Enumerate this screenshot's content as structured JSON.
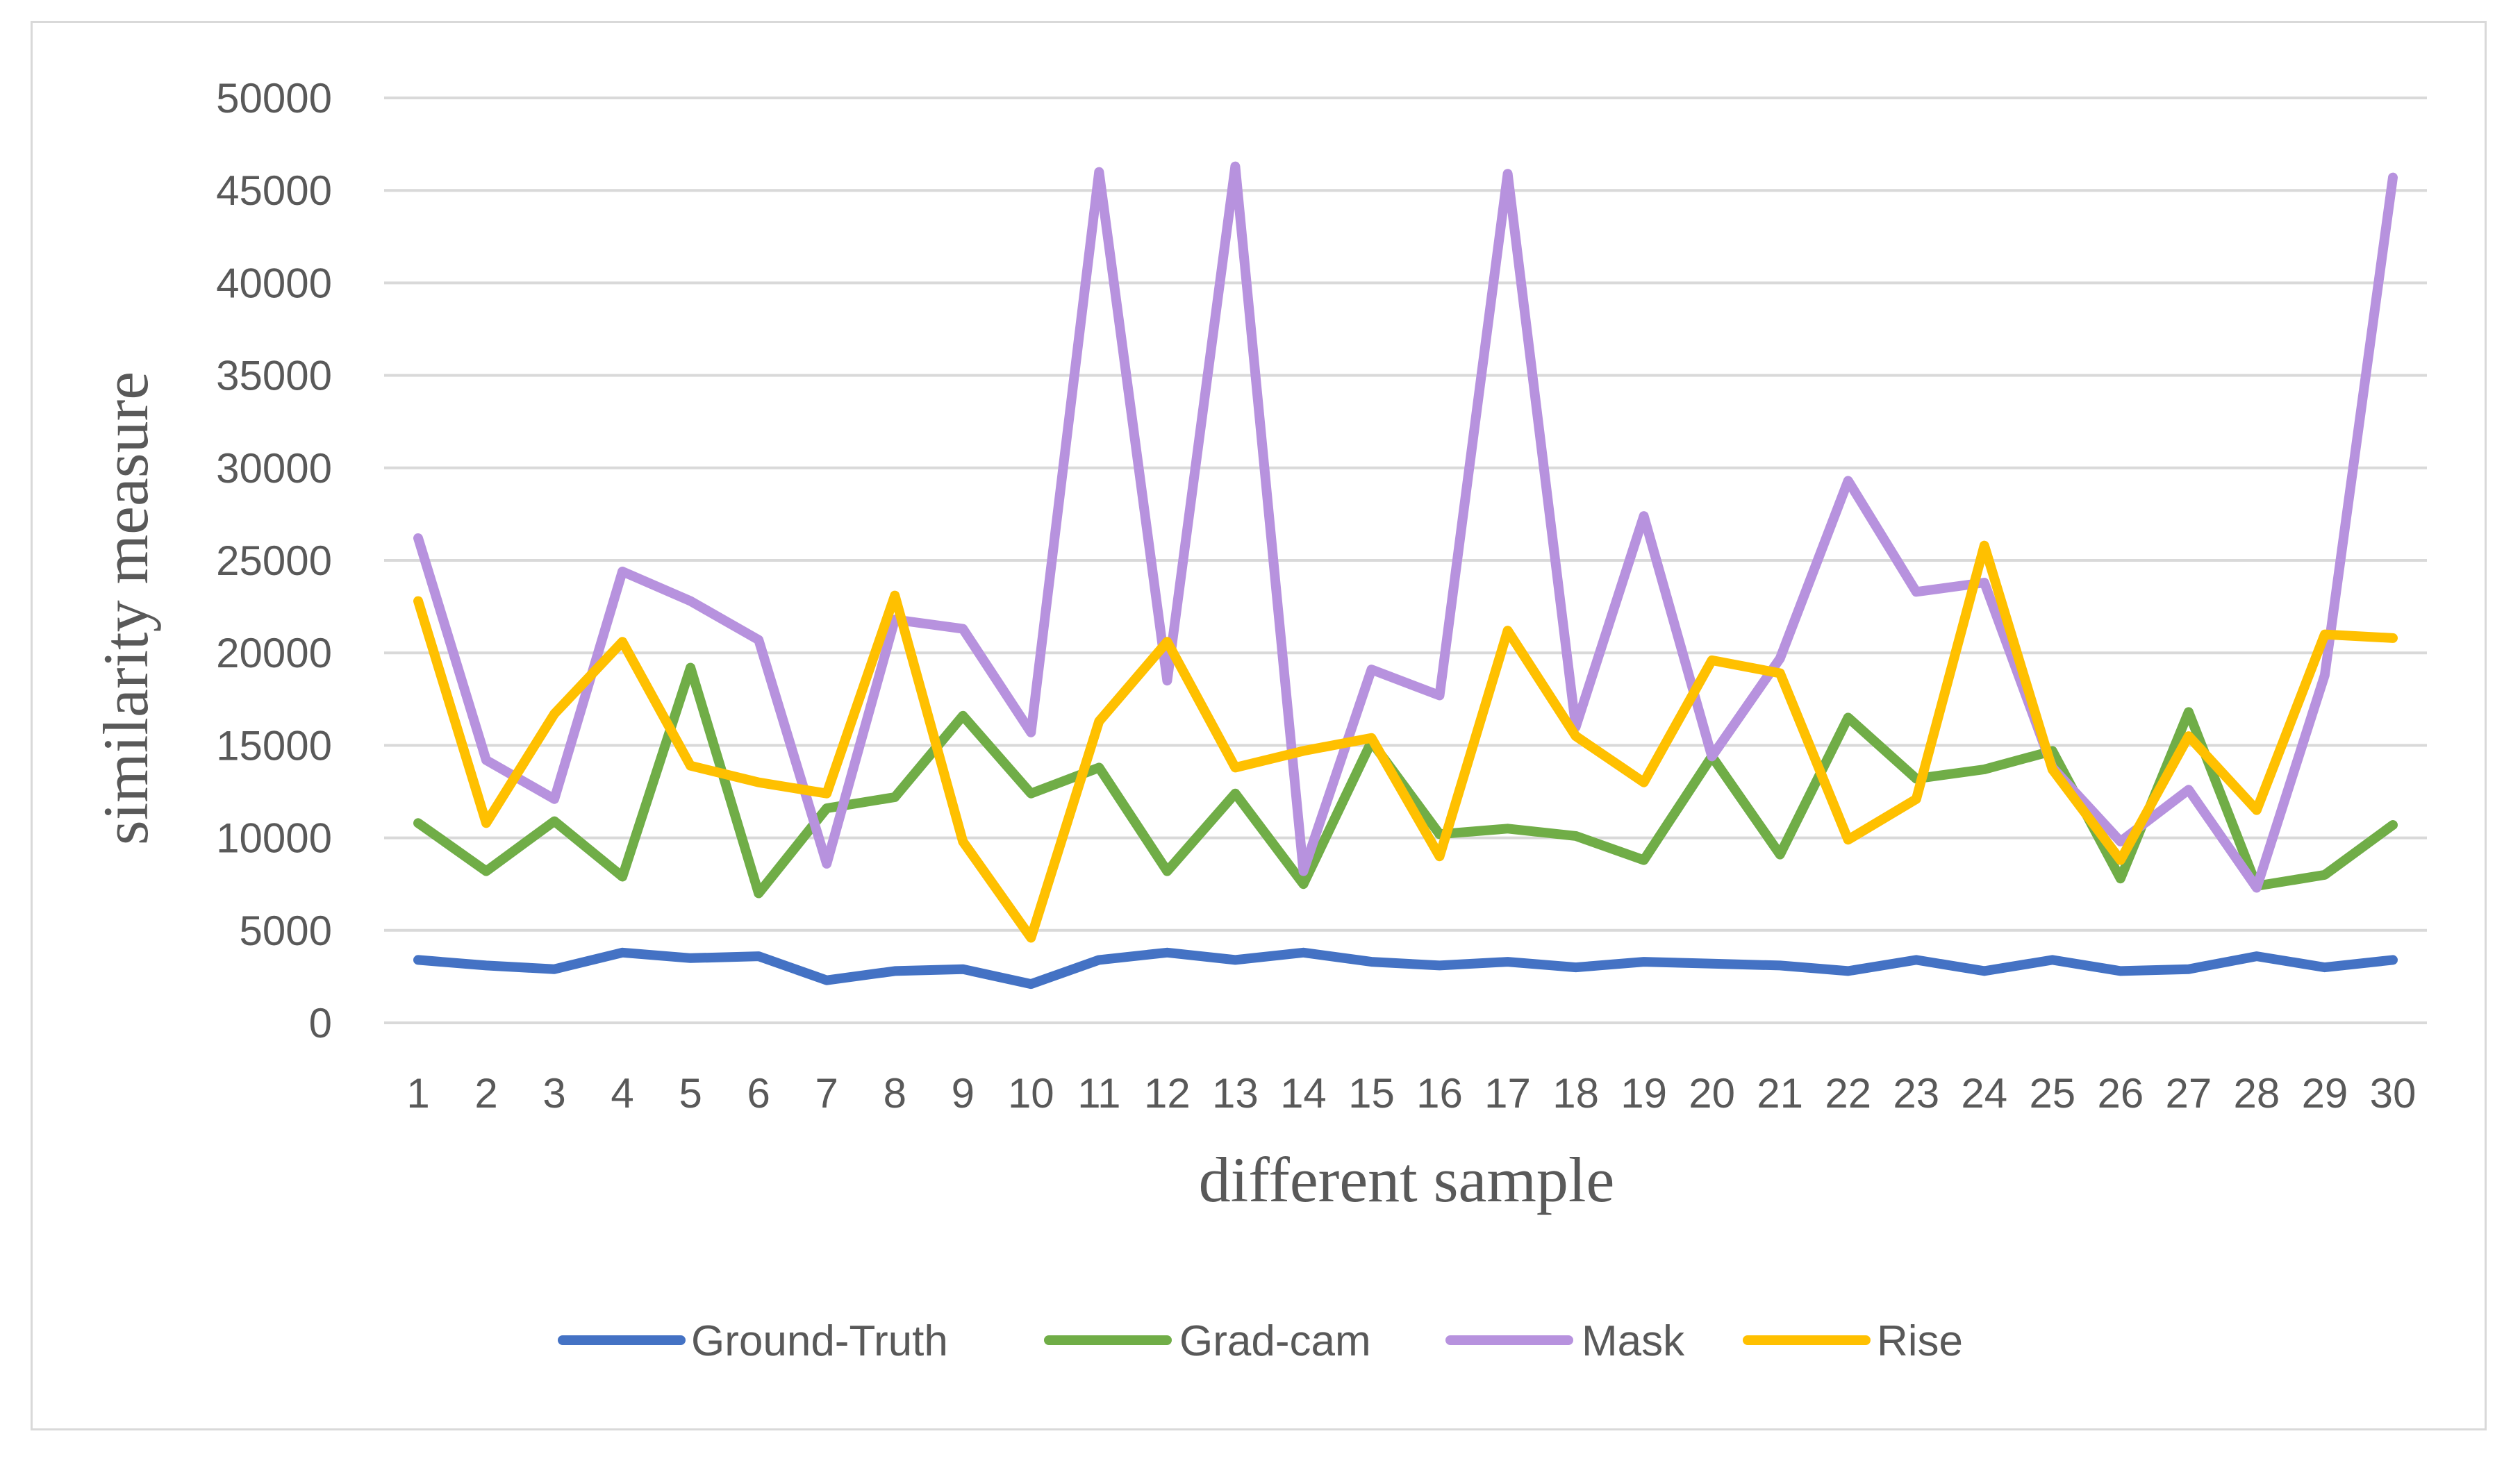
{
  "chart_data": {
    "type": "line",
    "title": "",
    "xlabel": "different sample",
    "ylabel": "similarity measure",
    "ylim": [
      0,
      50000
    ],
    "yticks": [
      0,
      5000,
      10000,
      15000,
      20000,
      25000,
      30000,
      35000,
      40000,
      45000,
      50000
    ],
    "grid": true,
    "legend_position": "bottom",
    "x": [
      1,
      2,
      3,
      4,
      5,
      6,
      7,
      8,
      9,
      10,
      11,
      12,
      13,
      14,
      15,
      16,
      17,
      18,
      19,
      20,
      21,
      22,
      23,
      24,
      25,
      26,
      27,
      28,
      29,
      30
    ],
    "series": [
      {
        "name": "Ground-Truth",
        "color": "#4472c4",
        "values": [
          3400,
          3100,
          2900,
          3800,
          3500,
          3600,
          2300,
          2800,
          2900,
          2100,
          3400,
          3800,
          3400,
          3800,
          3300,
          3100,
          3300,
          3000,
          3300,
          3200,
          3100,
          2800,
          3400,
          2800,
          3400,
          2800,
          2900,
          3600,
          3000,
          3400
        ]
      },
      {
        "name": "Grad-cam",
        "color": "#70ad47",
        "values": [
          10800,
          8200,
          10900,
          7900,
          19200,
          7000,
          11600,
          12200,
          16600,
          12400,
          13800,
          8200,
          12400,
          7500,
          15200,
          10200,
          10500,
          10100,
          8800,
          14400,
          9100,
          16500,
          13200,
          13700,
          14700,
          7800,
          16800,
          7400,
          8000,
          10700
        ]
      },
      {
        "name": "Mask",
        "color": "#b792de",
        "values": [
          26200,
          14200,
          12100,
          24400,
          22800,
          20700,
          8600,
          21800,
          21300,
          15700,
          46000,
          18500,
          46300,
          8200,
          19100,
          17700,
          45900,
          16000,
          27400,
          14400,
          19700,
          29300,
          23300,
          23800,
          13800,
          9800,
          12600,
          7300,
          18800,
          45700
        ]
      },
      {
        "name": "Rise",
        "color": "#ffc000",
        "values": [
          22800,
          10800,
          16700,
          20600,
          13900,
          13000,
          12400,
          23100,
          9800,
          4600,
          16300,
          20600,
          13800,
          14700,
          15400,
          9000,
          21200,
          15500,
          13000,
          19600,
          18900,
          9900,
          12100,
          25800,
          13700,
          8800,
          15500,
          11500,
          21000,
          20800
        ]
      }
    ]
  }
}
